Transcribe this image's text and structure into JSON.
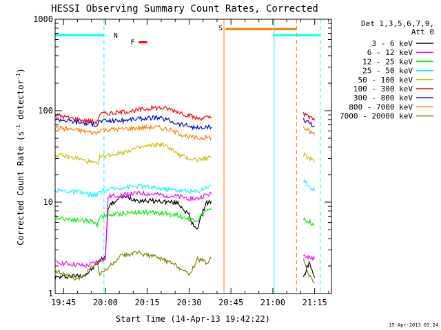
{
  "chart_data": {
    "type": "line",
    "title": "HESSI Observing Summary Count Rates, Corrected",
    "xlabel": "Start Time (14-Apr-13 19:42:22)",
    "ylabel_main": "Corrected Count Rate (s",
    "ylabel_sup1": "-1",
    "ylabel_mid": " detector",
    "ylabel_sup2": "-1",
    "ylabel_end": ")",
    "y_scale": "log",
    "xlim_min": [
      1182,
      1281
    ],
    "ylim": [
      1,
      1000
    ],
    "x_ticks": [
      {
        "min": 1185,
        "label": "19:45"
      },
      {
        "min": 1200,
        "label": "20:00"
      },
      {
        "min": 1215,
        "label": "20:15"
      },
      {
        "min": 1230,
        "label": "20:30"
      },
      {
        "min": 1245,
        "label": "20:45"
      },
      {
        "min": 1260,
        "label": "21:00"
      },
      {
        "min": 1275,
        "label": "21:15"
      }
    ],
    "y_ticks": [
      {
        "value": 1,
        "label": "1"
      },
      {
        "value": 10,
        "label": "10"
      },
      {
        "value": 100,
        "label": "100"
      },
      {
        "value": 1000,
        "label": "1000"
      }
    ],
    "legend_header_1": "Det 1,3,5,6,7,9,",
    "legend_header_2": "Att 0",
    "legend_position": "right",
    "series": [
      {
        "name": "3 - 6 keV",
        "color": "#000000",
        "segments": [
          [
            [
              1182,
              1.5
            ],
            [
              1193,
              1.6
            ],
            [
              1200,
              2.6
            ],
            [
              1201,
              9
            ],
            [
              1206,
              11.5
            ],
            [
              1212,
              10.5
            ],
            [
              1220,
              10.2
            ],
            [
              1226,
              9.8
            ],
            [
              1230,
              7.2
            ],
            [
              1231,
              5.8
            ],
            [
              1233,
              5.2
            ],
            [
              1236,
              9.8
            ],
            [
              1238,
              10.2
            ]
          ],
          [
            [
              1271,
              1.5
            ],
            [
              1273,
              2.2
            ],
            [
              1275,
              1.5
            ]
          ]
        ]
      },
      {
        "name": "6 - 12 keV",
        "color": "#ff00ff",
        "segments": [
          [
            [
              1182,
              2.2
            ],
            [
              1193,
              2.0
            ],
            [
              1200,
              2.4
            ],
            [
              1201,
              11.5
            ],
            [
              1206,
              12
            ],
            [
              1212,
              12.5
            ],
            [
              1220,
              12
            ],
            [
              1226,
              11.5
            ],
            [
              1230,
              11
            ],
            [
              1233,
              10.8
            ],
            [
              1236,
              12
            ],
            [
              1238,
              12.2
            ]
          ],
          [
            [
              1271,
              2.6
            ],
            [
              1273,
              2.5
            ],
            [
              1275,
              2.4
            ]
          ]
        ]
      },
      {
        "name": "12 - 25 keV",
        "color": "#00ee00",
        "segments": [
          [
            [
              1182,
              6.8
            ],
            [
              1190,
              6.4
            ],
            [
              1195,
              6.2
            ],
            [
              1197,
              5.6
            ],
            [
              1198,
              7.0
            ],
            [
              1206,
              7.5
            ],
            [
              1212,
              7.8
            ],
            [
              1220,
              7.6
            ],
            [
              1226,
              7.2
            ],
            [
              1230,
              6.5
            ],
            [
              1233,
              6.4
            ],
            [
              1236,
              8.0
            ],
            [
              1238,
              8.2
            ]
          ],
          [
            [
              1271,
              6.5
            ],
            [
              1273,
              6.1
            ],
            [
              1275,
              5.6
            ]
          ]
        ]
      },
      {
        "name": "25 - 50 keV",
        "color": "#00ffff",
        "segments": [
          [
            [
              1182,
              13.5
            ],
            [
              1190,
              12.8
            ],
            [
              1197,
              11.8
            ],
            [
              1198,
              13
            ],
            [
              1206,
              14.5
            ],
            [
              1212,
              15
            ],
            [
              1220,
              14
            ],
            [
              1226,
              13.5
            ],
            [
              1230,
              13.2
            ],
            [
              1233,
              13
            ],
            [
              1236,
              14.5
            ],
            [
              1238,
              15
            ]
          ],
          [
            [
              1271,
              17
            ],
            [
              1273,
              15
            ],
            [
              1275,
              13.5
            ]
          ]
        ]
      },
      {
        "name": "50 - 100 keV",
        "color": "#ccc000",
        "segments": [
          [
            [
              1182,
              33
            ],
            [
              1190,
              30
            ],
            [
              1195,
              27
            ],
            [
              1197,
              26
            ],
            [
              1198,
              31
            ],
            [
              1206,
              35
            ],
            [
              1210,
              38
            ],
            [
              1215,
              41
            ],
            [
              1220,
              43
            ],
            [
              1224,
              38
            ],
            [
              1226,
              33
            ],
            [
              1230,
              30
            ],
            [
              1233,
              29
            ],
            [
              1238,
              31
            ]
          ],
          [
            [
              1271,
              33
            ],
            [
              1273,
              30
            ],
            [
              1275,
              28
            ]
          ]
        ]
      },
      {
        "name": "100 - 300 keV",
        "color": "#ff0000",
        "segments": [
          [
            [
              1182,
              90
            ],
            [
              1190,
              80
            ],
            [
              1197,
              75
            ],
            [
              1198,
              92
            ],
            [
              1206,
              96
            ],
            [
              1212,
              102
            ],
            [
              1218,
              108
            ],
            [
              1222,
              106
            ],
            [
              1226,
              98
            ],
            [
              1230,
              88
            ],
            [
              1233,
              82
            ],
            [
              1238,
              85
            ]
          ],
          [
            [
              1271,
              92
            ],
            [
              1273,
              85
            ],
            [
              1275,
              78
            ]
          ]
        ]
      },
      {
        "name": "300 - 800 keV",
        "color": "#0000dd",
        "segments": [
          [
            [
              1182,
              82
            ],
            [
              1190,
              75
            ],
            [
              1197,
              70
            ],
            [
              1198,
              77
            ],
            [
              1206,
              78
            ],
            [
              1212,
              82
            ],
            [
              1218,
              84
            ],
            [
              1222,
              80
            ],
            [
              1226,
              72
            ],
            [
              1230,
              68
            ],
            [
              1233,
              64
            ],
            [
              1238,
              66
            ]
          ],
          [
            [
              1271,
              80
            ],
            [
              1273,
              74
            ],
            [
              1275,
              68
            ]
          ]
        ]
      },
      {
        "name": "800 - 7000 keV",
        "color": "#ff8000",
        "segments": [
          [
            [
              1182,
              66
            ],
            [
              1190,
              61
            ],
            [
              1197,
              57
            ],
            [
              1198,
              62
            ],
            [
              1206,
              63
            ],
            [
              1212,
              65
            ],
            [
              1218,
              66
            ],
            [
              1222,
              63
            ],
            [
              1226,
              57
            ],
            [
              1230,
              52
            ],
            [
              1233,
              50
            ],
            [
              1238,
              51
            ]
          ],
          [
            [
              1271,
              66
            ],
            [
              1273,
              60
            ],
            [
              1275,
              55
            ]
          ]
        ]
      },
      {
        "name": "7000 - 20000 keV",
        "color": "#808000",
        "segments": [
          [
            [
              1182,
              1.8
            ],
            [
              1190,
              1.4
            ],
            [
              1197,
              2.2
            ],
            [
              1198,
              1.6
            ],
            [
              1206,
              2.6
            ],
            [
              1212,
              2.8
            ],
            [
              1220,
              2.4
            ],
            [
              1226,
              2.0
            ],
            [
              1230,
              1.6
            ],
            [
              1233,
              2.4
            ],
            [
              1236,
              2.2
            ],
            [
              1238,
              2.4
            ]
          ],
          [
            [
              1271,
              2.4
            ],
            [
              1273,
              1.6
            ],
            [
              1275,
              1.3
            ]
          ]
        ]
      }
    ],
    "flags": [
      {
        "label": "N",
        "color": "#00ffff",
        "x_start_min": 1182,
        "x_end_min": 1199.5,
        "value": 670
      },
      {
        "label": "S",
        "color": "#ff8000",
        "x_start_min": 1243,
        "x_end_min": 1268.5,
        "value": 780
      },
      {
        "label": "",
        "color": "#00ffff",
        "x_start_min": 1260,
        "x_end_min": 1277,
        "value": 670
      },
      {
        "label": "F",
        "color": "#ff0000",
        "x_start_min": 1212,
        "x_end_min": 1215,
        "value": 560
      }
    ],
    "vlines": [
      {
        "min": 1182,
        "color": "#00ffff",
        "style": "solid"
      },
      {
        "min": 1199.5,
        "color": "#00ffff",
        "style": "dashed"
      },
      {
        "min": 1242.5,
        "color": "#ff8000",
        "style": "solid"
      },
      {
        "min": 1260.5,
        "color": "#00ffff",
        "style": "solid"
      },
      {
        "min": 1268.5,
        "color": "#ff8000",
        "style": "dashed"
      },
      {
        "min": 1277,
        "color": "#00ffff",
        "style": "dashed"
      }
    ],
    "footer": "15-Apr-2013 03:24"
  }
}
